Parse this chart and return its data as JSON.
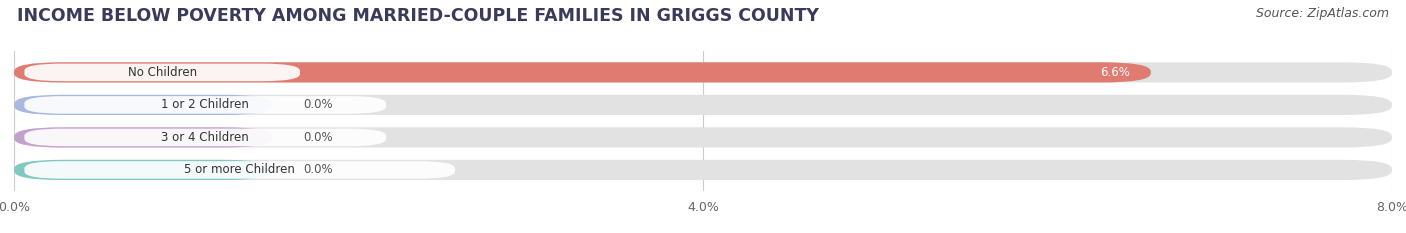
{
  "title": "INCOME BELOW POVERTY AMONG MARRIED-COUPLE FAMILIES IN GRIGGS COUNTY",
  "source": "Source: ZipAtlas.com",
  "categories": [
    "No Children",
    "1 or 2 Children",
    "3 or 4 Children",
    "5 or more Children"
  ],
  "values": [
    6.6,
    0.0,
    0.0,
    0.0
  ],
  "bar_colors": [
    "#e07b72",
    "#a8b8e0",
    "#c4a0cc",
    "#80c8c0"
  ],
  "xlim": [
    0,
    8.0
  ],
  "xticks": [
    0.0,
    4.0,
    8.0
  ],
  "xticklabels": [
    "0.0%",
    "4.0%",
    "8.0%"
  ],
  "background_color": "#f0f0f0",
  "bar_bg_color": "#e2e2e2",
  "title_fontsize": 12.5,
  "source_fontsize": 9,
  "bar_height": 0.62,
  "zero_bar_width": 1.5
}
